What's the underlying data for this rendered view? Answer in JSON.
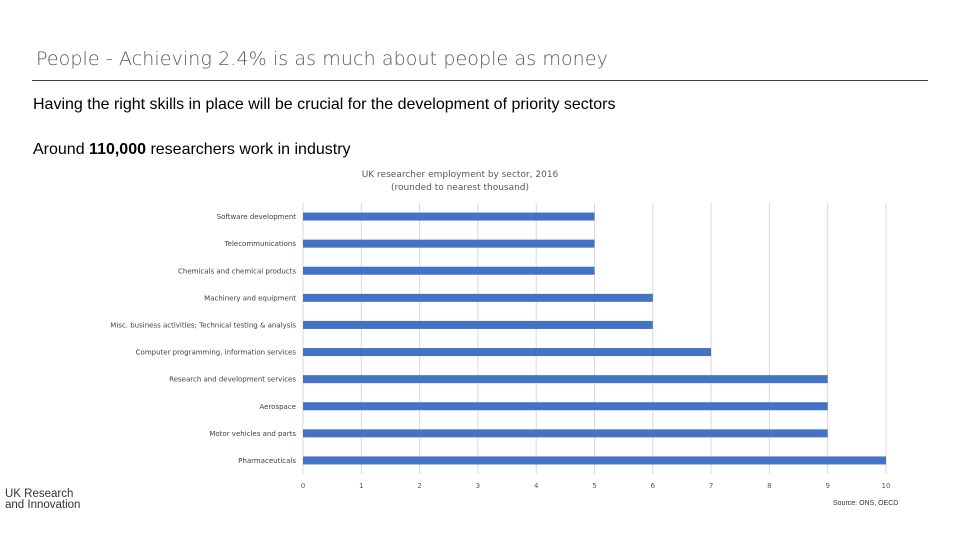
{
  "slide": {
    "title": "People - Achieving 2.4% is as much about people as money",
    "subtitle": "Having the right skills in place will be crucial for the development of priority sectors",
    "highlight_prefix": "Around ",
    "highlight_number": "110,000",
    "highlight_suffix": " researchers work in industry",
    "logo_line1": "UK Research",
    "logo_line2": "and Innovation",
    "source": "Source: ONS, OECD"
  },
  "colors": {
    "bar": "#4472C4",
    "grid": "#D9D9D9"
  },
  "chart_data": {
    "type": "bar",
    "orientation": "horizontal",
    "title": "UK researcher employment by sector, 2016",
    "subtitle": "(rounded to nearest thousand)",
    "categories": [
      "Software development",
      "Telecommunications",
      "Chemicals and chemical products",
      "Machinery and equipment",
      "Misc. business activities; Technical testing & analysis",
      "Computer programming, information services",
      "Research and development services",
      "Aerospace",
      "Motor vehicles and parts",
      "Pharmaceuticals"
    ],
    "values": [
      5,
      5,
      5,
      6,
      6,
      7,
      9,
      9,
      9,
      10
    ],
    "xlim": [
      0,
      10
    ],
    "xticks": [
      "0",
      "1",
      "2",
      "3",
      "4",
      "5",
      "6",
      "7",
      "8",
      "9",
      "10"
    ],
    "grid": true,
    "legend": "none"
  }
}
